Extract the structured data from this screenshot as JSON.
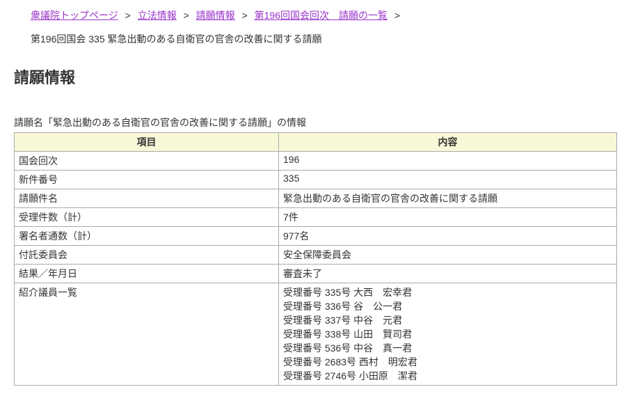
{
  "breadcrumb": {
    "items": [
      {
        "label": "衆議院トップページ"
      },
      {
        "label": "立法情報"
      },
      {
        "label": "請願情報"
      },
      {
        "label": "第196回国会回次　請願の一覧"
      }
    ],
    "separator": ">"
  },
  "subtitle": "第196回国会 335 緊急出動のある自衛官の官舎の改善に関する請願",
  "page_title": "請願情報",
  "table_caption": "請願名「緊急出動のある自衛官の官舎の改善に関する請願」の情報",
  "table": {
    "columns": [
      "項目",
      "内容"
    ],
    "header_bg": "#f8f8d8",
    "border_color": "#aaaaaa",
    "col_widths": [
      "380px",
      "auto"
    ],
    "rows": [
      {
        "label": "国会回次",
        "value": "196"
      },
      {
        "label": "新件番号",
        "value": "335"
      },
      {
        "label": "請願件名",
        "value": "緊急出動のある自衛官の官舎の改善に関する請願"
      },
      {
        "label": "受理件数（計）",
        "value": "7件"
      },
      {
        "label": "署名者通数（計）",
        "value": "977名"
      },
      {
        "label": "付託委員会",
        "value": "安全保障委員会"
      },
      {
        "label": "結果／年月日",
        "value": "審査未了"
      },
      {
        "label": "紹介議員一覧",
        "value_lines": [
          "受理番号 335号 大西　宏幸君",
          "受理番号 336号 谷　公一君",
          "受理番号 337号 中谷　元君",
          "受理番号 338号 山田　賢司君",
          "受理番号 536号 中谷　真一君",
          "受理番号 2683号 西村　明宏君",
          "受理番号 2746号 小田原　潔君"
        ]
      }
    ]
  },
  "colors": {
    "link": "#9933cc",
    "text": "#333333",
    "background": "#ffffff"
  }
}
